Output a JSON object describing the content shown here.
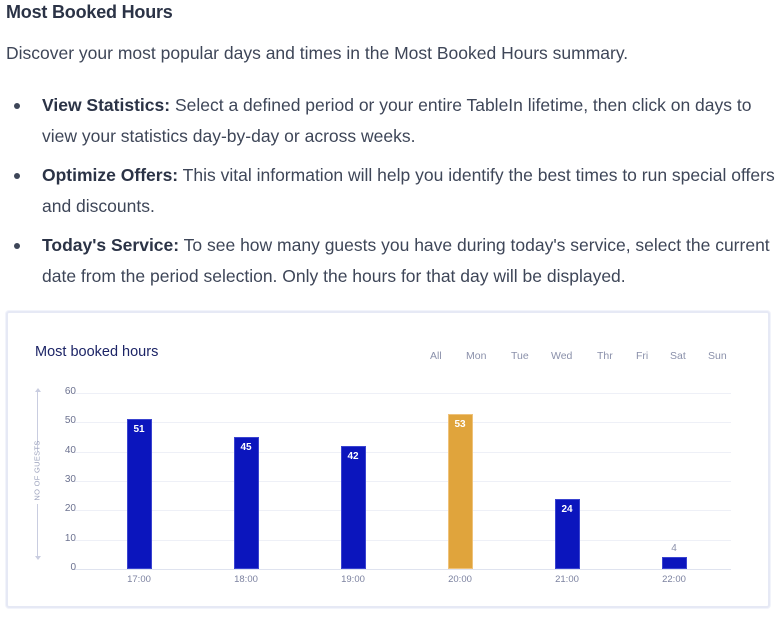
{
  "document": {
    "title": "Most Booked Hours",
    "intro": "Discover your most popular days and times in the Most Booked Hours summary.",
    "bullets": [
      {
        "label": "View Statistics:",
        "text": " Select a defined period or your entire TableIn lifetime, then click on days to view your statistics day-by-day or across weeks."
      },
      {
        "label": "Optimize Offers:",
        "text": " This vital information will help you identify the best times to run special offers and discounts."
      },
      {
        "label": "Today's Service:",
        "text": " To see how many guests you have during today's service, select the current date from the period selection. Only the hours for that day will be displayed."
      }
    ]
  },
  "card": {
    "title": "Most booked hours",
    "day_tabs": [
      "All",
      "Mon",
      "Tue",
      "Wed",
      "Thr",
      "Fri",
      "Sat",
      "Sun"
    ],
    "y_axis_label": "NO OF GUESTS"
  },
  "colors": {
    "bar": "#0b15bd",
    "highlight_bar": "#e0a43c",
    "title": "#1c2466"
  },
  "chart_data": {
    "type": "bar",
    "title": "Most booked hours",
    "xlabel": "",
    "ylabel": "NO OF GUESTS",
    "categories": [
      "17:00",
      "18:00",
      "19:00",
      "20:00",
      "21:00",
      "22:00"
    ],
    "values": [
      51,
      45,
      42,
      53,
      24,
      4
    ],
    "highlighted_category": "20:00",
    "y_ticks": [
      0,
      10,
      20,
      30,
      40,
      50,
      60
    ],
    "ylim": [
      0,
      60
    ],
    "grid": true,
    "filters": [
      "All",
      "Mon",
      "Tue",
      "Wed",
      "Thr",
      "Fri",
      "Sat",
      "Sun"
    ]
  }
}
